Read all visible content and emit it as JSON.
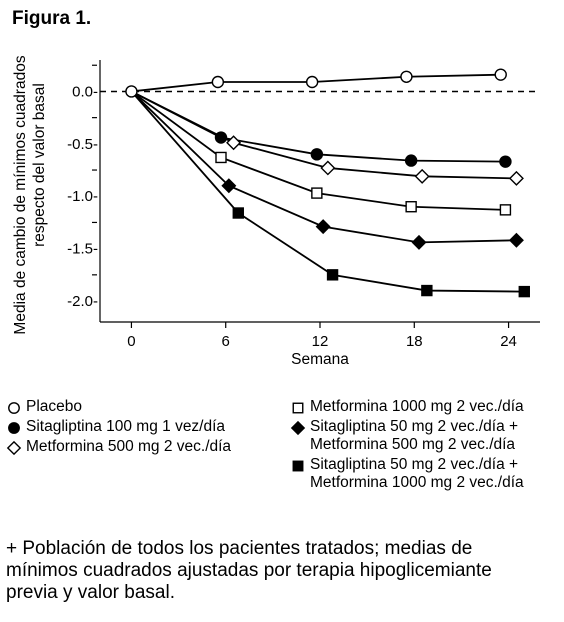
{
  "figure_title": "Figura 1.",
  "footnote": "+ Población de todos los pacientes tratados; medias de mínimos cuadrados ajustadas por terapia hipoglicemiante previa y valor basal.",
  "chart_data": {
    "type": "line",
    "title": "",
    "xlabel": "Semana",
    "ylabel_line1": "Media de cambio de mínimos cuadrados",
    "ylabel_line2": "respecto del valor basal",
    "xlim": [
      -2,
      26
    ],
    "ylim": [
      -2.2,
      0.3
    ],
    "x_ticks": [
      0,
      6,
      12,
      18,
      24
    ],
    "x_tick_labels": [
      "0",
      "6",
      "12",
      "18",
      "24"
    ],
    "y_ticks": [
      0.0,
      -0.5,
      -1.0,
      -1.5,
      -2.0
    ],
    "y_tick_labels": [
      "0.0-",
      "-0.5-",
      "-1.0-",
      "-1.5-",
      "-2.0-"
    ],
    "y_minor_ticks": [
      0.25,
      -0.25,
      -0.75,
      -1.25,
      -1.75
    ],
    "reference_line": {
      "y": 0,
      "style": "dashed"
    },
    "series": [
      {
        "name": "Placebo",
        "marker": "circle-open",
        "x": [
          0,
          5.5,
          11.5,
          17.5,
          23.5
        ],
        "y": [
          0,
          0.09,
          0.09,
          0.14,
          0.16
        ]
      },
      {
        "name": "Sitagliptina 100 mg 1 vez/día",
        "marker": "circle-filled",
        "x": [
          0,
          5.7,
          11.8,
          17.8,
          23.8
        ],
        "y": [
          0,
          -0.44,
          -0.6,
          -0.66,
          -0.67
        ]
      },
      {
        "name": "Metformina 500 mg 2 vec./día",
        "marker": "diamond-open",
        "x": [
          0,
          6.5,
          12.5,
          18.5,
          24.5
        ],
        "y": [
          0,
          -0.49,
          -0.73,
          -0.81,
          -0.83
        ]
      },
      {
        "name": "Metformina 1000 mg 2 vec./día",
        "marker": "square-open",
        "x": [
          0,
          5.7,
          11.8,
          17.8,
          23.8
        ],
        "y": [
          0,
          -0.63,
          -0.97,
          -1.1,
          -1.13
        ]
      },
      {
        "name": "Sitagliptina 50 mg 2 vec./día +\nMetformina  500 mg 2 vec./día",
        "marker": "diamond-filled",
        "x": [
          0,
          6.2,
          12.2,
          18.3,
          24.5
        ],
        "y": [
          0,
          -0.9,
          -1.29,
          -1.44,
          -1.42
        ]
      },
      {
        "name": "Sitagliptina 50 mg 2 vec./día +\nMetformina 1000 mg 2 vec./día",
        "marker": "square-filled",
        "x": [
          0,
          6.8,
          12.8,
          18.8,
          25.0
        ],
        "y": [
          0,
          -1.16,
          -1.75,
          -1.9,
          -1.91
        ]
      }
    ]
  },
  "legend_left": [
    0,
    1,
    2
  ],
  "legend_right": [
    3,
    4,
    5
  ]
}
